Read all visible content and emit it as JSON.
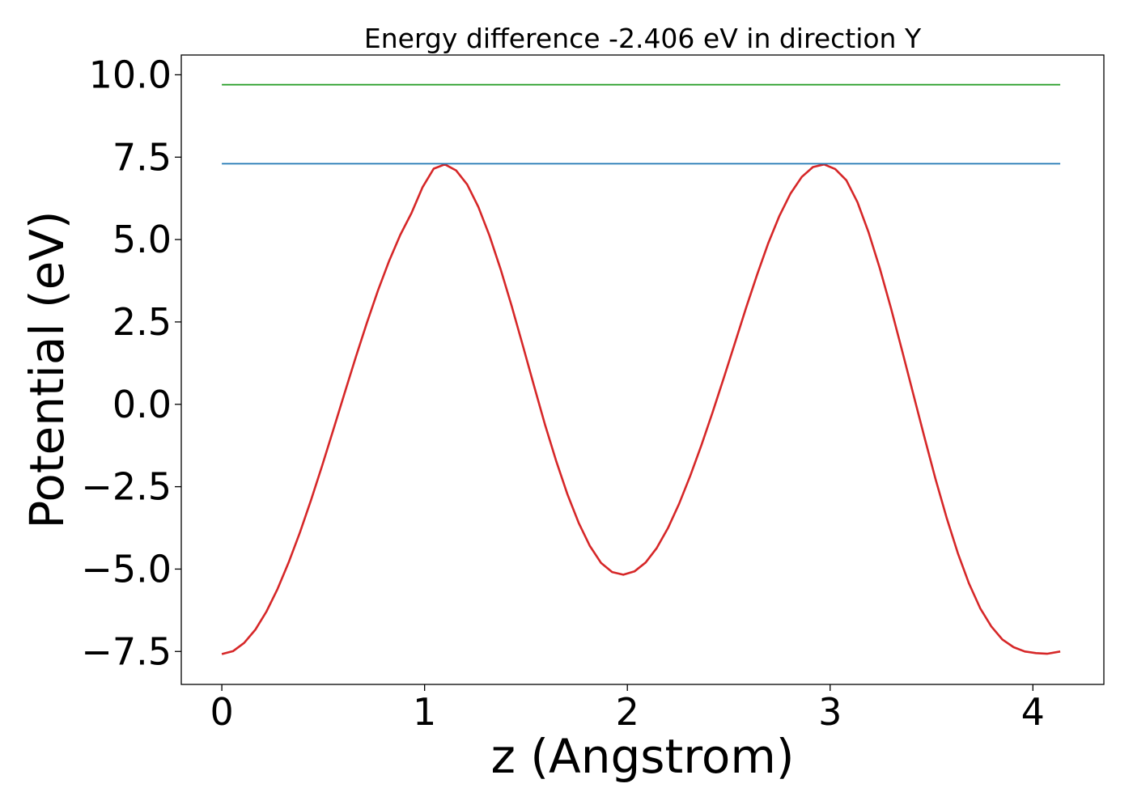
{
  "chart_data": {
    "type": "line",
    "title": "Energy difference -2.406 eV in direction Y",
    "xlabel": "z (Angstrom)",
    "ylabel": "Potential (eV)",
    "xlim": [
      -0.2,
      4.35
    ],
    "ylim": [
      -8.5,
      10.6
    ],
    "grid": false,
    "legend": "none",
    "x_ticks": [
      {
        "value": 0,
        "label": "0"
      },
      {
        "value": 1,
        "label": "1"
      },
      {
        "value": 2,
        "label": "2"
      },
      {
        "value": 3,
        "label": "3"
      },
      {
        "value": 4,
        "label": "4"
      }
    ],
    "y_ticks": [
      {
        "value": -7.5,
        "label": "−7.5"
      },
      {
        "value": -5.0,
        "label": "−5.0"
      },
      {
        "value": -2.5,
        "label": "−2.5"
      },
      {
        "value": 0.0,
        "label": "0.0"
      },
      {
        "value": 2.5,
        "label": "2.5"
      },
      {
        "value": 5.0,
        "label": "5.0"
      },
      {
        "value": 7.5,
        "label": "7.5"
      },
      {
        "value": 10.0,
        "label": "10.0"
      }
    ],
    "series": [
      {
        "color": "#d62728",
        "x": [
          0.0,
          0.055,
          0.11,
          0.165,
          0.22,
          0.275,
          0.33,
          0.385,
          0.44,
          0.495,
          0.55,
          0.605,
          0.66,
          0.715,
          0.77,
          0.825,
          0.88,
          0.935,
          0.99,
          1.045,
          1.1,
          1.155,
          1.21,
          1.265,
          1.32,
          1.375,
          1.43,
          1.485,
          1.54,
          1.595,
          1.65,
          1.705,
          1.76,
          1.815,
          1.87,
          1.925,
          1.98,
          2.035,
          2.09,
          2.145,
          2.2,
          2.255,
          2.31,
          2.365,
          2.42,
          2.475,
          2.53,
          2.585,
          2.64,
          2.695,
          2.75,
          2.805,
          2.86,
          2.915,
          2.97,
          3.025,
          3.08,
          3.135,
          3.19,
          3.245,
          3.3,
          3.355,
          3.41,
          3.465,
          3.52,
          3.575,
          3.63,
          3.685,
          3.74,
          3.795,
          3.85,
          3.905,
          3.96,
          4.015,
          4.07,
          4.135
        ],
        "y": [
          -7.58,
          -7.49,
          -7.24,
          -6.84,
          -6.29,
          -5.6,
          -4.79,
          -3.89,
          -2.9,
          -1.86,
          -0.77,
          0.33,
          1.42,
          2.47,
          3.45,
          4.35,
          5.14,
          5.8,
          6.59,
          7.15,
          7.28,
          7.1,
          6.67,
          5.99,
          5.12,
          4.1,
          2.97,
          1.77,
          0.55,
          -0.64,
          -1.74,
          -2.74,
          -3.6,
          -4.3,
          -4.81,
          -5.09,
          -5.17,
          -5.07,
          -4.8,
          -4.36,
          -3.76,
          -3.02,
          -2.17,
          -1.24,
          -0.25,
          0.79,
          1.85,
          2.92,
          3.94,
          4.89,
          5.72,
          6.4,
          6.9,
          7.2,
          7.28,
          7.14,
          6.8,
          6.13,
          5.21,
          4.13,
          2.92,
          1.63,
          0.31,
          -1.0,
          -2.27,
          -3.45,
          -4.52,
          -5.44,
          -6.19,
          -6.74,
          -7.14,
          -7.37,
          -7.5,
          -7.55,
          -7.57,
          -7.5
        ]
      },
      {
        "color": "#1f77b4",
        "x": [
          0.0,
          4.135
        ],
        "y": [
          7.3,
          7.3
        ]
      },
      {
        "color": "#2ca02c",
        "x": [
          0.0,
          4.135
        ],
        "y": [
          9.7,
          9.7
        ]
      }
    ]
  }
}
